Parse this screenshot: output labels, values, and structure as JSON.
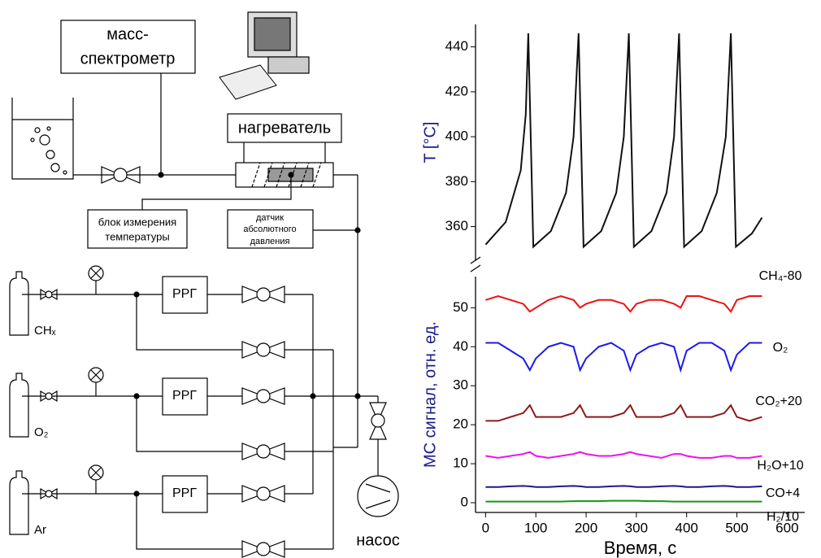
{
  "diagram": {
    "mass_spec": [
      "масс-",
      "спектрометр"
    ],
    "heater": "нагреватель",
    "temp_block": [
      "блок измерения",
      "температуры"
    ],
    "pressure_sensor": [
      "датчик",
      "абсолютного",
      "давления"
    ],
    "controllers": [
      "РРГ",
      "РРГ",
      "РРГ"
    ],
    "gases": [
      "CHₓ",
      "O₂",
      "Ar"
    ],
    "pump": "насос"
  },
  "chart_data": [
    {
      "type": "line",
      "ylabel": "T [°C]",
      "x": [
        0,
        40,
        70,
        80,
        85,
        95,
        130,
        160,
        175,
        185,
        195,
        230,
        260,
        275,
        285,
        295,
        330,
        360,
        375,
        385,
        395,
        430,
        460,
        478,
        488,
        498,
        530,
        550
      ],
      "xlim": [
        -20,
        635
      ],
      "ylim": [
        345,
        450
      ],
      "yticks": [
        360,
        380,
        400,
        420,
        440
      ],
      "series": [
        {
          "color": "#111111",
          "values": [
            352,
            362,
            385,
            410,
            446,
            351,
            358,
            375,
            400,
            446,
            351,
            358,
            375,
            400,
            446,
            351,
            358,
            375,
            400,
            446,
            351,
            358,
            375,
            400,
            446,
            351,
            357,
            364
          ]
        }
      ]
    },
    {
      "type": "line",
      "ylabel": "МС сигнал, отн. ед.",
      "xlabel": "Время, с",
      "x": [
        0,
        25,
        50,
        75,
        88,
        100,
        125,
        150,
        175,
        188,
        200,
        225,
        250,
        275,
        288,
        300,
        325,
        350,
        375,
        388,
        400,
        425,
        450,
        475,
        488,
        500,
        525,
        550
      ],
      "xlim": [
        -20,
        635
      ],
      "xticks": [
        0,
        100,
        200,
        300,
        400,
        500,
        600
      ],
      "ylim": [
        -2.5,
        58
      ],
      "yticks": [
        0,
        10,
        20,
        30,
        40,
        50
      ],
      "series": [
        {
          "name": "CH₄-80",
          "color": "#ee1111",
          "values": [
            52,
            53,
            52,
            51,
            49,
            50,
            52,
            53,
            52,
            50,
            51,
            52,
            52,
            51,
            49,
            51,
            52,
            52,
            51,
            50,
            53,
            53,
            52,
            51,
            49,
            52,
            53,
            53
          ]
        },
        {
          "name": "O₂",
          "color": "#1a1aee",
          "values": [
            41,
            41,
            39,
            37,
            34,
            37,
            40,
            41,
            40,
            34,
            37,
            40,
            41,
            39,
            34,
            38,
            40,
            41,
            40,
            34,
            39,
            41,
            41,
            39,
            34,
            38,
            41,
            41
          ]
        },
        {
          "name": "CO₂+20",
          "color": "#8b1a1a",
          "values": [
            21,
            21,
            22,
            23,
            25,
            22,
            22,
            22,
            23,
            25,
            22,
            22,
            22,
            23,
            25,
            22,
            22,
            22,
            23,
            25,
            22,
            22,
            22,
            23,
            25,
            22,
            21,
            22
          ]
        },
        {
          "name": "H₂O+10",
          "color": "#ee11ee",
          "values": [
            12,
            11.5,
            12,
            12.5,
            13,
            12,
            11.5,
            12,
            12.5,
            13,
            12.5,
            12,
            12,
            12.5,
            13,
            12.5,
            12,
            11.5,
            12.5,
            12.5,
            12,
            11.5,
            11.5,
            12,
            12,
            11.5,
            11.5,
            12
          ]
        },
        {
          "name": "CO+4",
          "color": "#1a1a8c",
          "values": [
            4,
            4,
            4.2,
            4.3,
            4.2,
            4,
            4,
            4.2,
            4.3,
            4.2,
            4,
            4,
            4.2,
            4.3,
            4.2,
            4,
            4,
            4.2,
            4.3,
            4.2,
            4,
            4,
            4.2,
            4.3,
            4.2,
            4,
            4,
            4.2
          ]
        },
        {
          "name": "H₂/10",
          "color": "#119911",
          "values": [
            0.3,
            0.3,
            0.3,
            0.3,
            0.3,
            0.3,
            0.3,
            0.3,
            0.4,
            0.4,
            0.4,
            0.4,
            0.5,
            0.5,
            0.5,
            0.5,
            0.4,
            0.4,
            0.3,
            0.3,
            0.3,
            0.3,
            0.3,
            0.3,
            0.3,
            0.3,
            0.3,
            0.3
          ]
        }
      ]
    }
  ]
}
